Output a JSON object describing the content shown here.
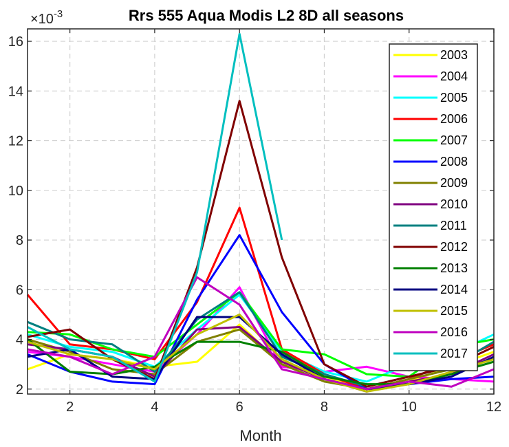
{
  "chart_data": {
    "type": "line",
    "title": "Rrs 555 Aqua Modis L2 8D all seasons",
    "xlabel": "Month",
    "ylabel": "",
    "y_exponent_label": "×10",
    "y_exponent_power": "-3",
    "xlim": [
      1,
      12
    ],
    "ylim": [
      1.8,
      16.5
    ],
    "xticks": [
      2,
      4,
      6,
      8,
      10,
      12
    ],
    "yticks": [
      2,
      4,
      6,
      8,
      10,
      12,
      14,
      16
    ],
    "grid": true,
    "legend_position": "top-right",
    "x": [
      1,
      2,
      3,
      4,
      5,
      6,
      7,
      8,
      9,
      10,
      11,
      12
    ],
    "series": [
      {
        "name": "2003",
        "color": "#ffff00",
        "values": [
          2.8,
          3.4,
          3.2,
          2.9,
          3.1,
          4.6,
          3.0,
          2.5,
          2.0,
          2.3,
          2.9,
          3.5
        ]
      },
      {
        "name": "2004",
        "color": "#ff00ff",
        "values": [
          3.5,
          3.3,
          3.0,
          2.7,
          4.2,
          6.1,
          2.9,
          2.7,
          2.9,
          2.5,
          2.4,
          2.3
        ]
      },
      {
        "name": "2005",
        "color": "#00ffff",
        "values": [
          4.2,
          3.7,
          3.5,
          2.9,
          4.4,
          5.8,
          3.5,
          2.7,
          2.3,
          3.0,
          3.4,
          4.2
        ]
      },
      {
        "name": "2006",
        "color": "#ff0000",
        "values": [
          5.8,
          3.8,
          3.6,
          3.2,
          5.5,
          9.3,
          3.6,
          2.6,
          2.0,
          2.4,
          3.1,
          3.8
        ]
      },
      {
        "name": "2007",
        "color": "#00ff00",
        "values": [
          4.3,
          4.2,
          3.6,
          3.3,
          4.6,
          5.9,
          3.6,
          3.4,
          2.6,
          2.5,
          3.7,
          4.0
        ]
      },
      {
        "name": "2008",
        "color": "#0000ff",
        "values": [
          3.4,
          2.7,
          2.3,
          2.2,
          5.6,
          8.2,
          5.1,
          3.0,
          2.0,
          2.2,
          2.4,
          2.5
        ]
      },
      {
        "name": "2009",
        "color": "#808000",
        "values": [
          4.0,
          3.5,
          2.8,
          2.6,
          3.9,
          4.4,
          3.0,
          2.3,
          2.0,
          2.4,
          2.8,
          3.2
        ]
      },
      {
        "name": "2010",
        "color": "#800080",
        "values": [
          3.8,
          3.6,
          3.3,
          2.5,
          4.4,
          4.5,
          3.1,
          2.4,
          1.9,
          2.3,
          2.6,
          3.4
        ]
      },
      {
        "name": "2011",
        "color": "#008080",
        "values": [
          4.7,
          4.0,
          3.8,
          2.7,
          4.8,
          5.9,
          3.3,
          2.6,
          2.1,
          2.5,
          2.9,
          3.9
        ]
      },
      {
        "name": "2012",
        "color": "#800000",
        "values": [
          4.1,
          4.4,
          3.2,
          2.4,
          6.9,
          13.6,
          7.3,
          3.0,
          2.1,
          2.5,
          2.9,
          3.7
        ]
      },
      {
        "name": "2013",
        "color": "#008000",
        "values": [
          4.0,
          2.7,
          2.6,
          2.9,
          3.9,
          3.9,
          3.5,
          2.5,
          2.2,
          2.2,
          2.6,
          3.1
        ]
      },
      {
        "name": "2014",
        "color": "#000080",
        "values": [
          3.3,
          3.6,
          2.5,
          2.4,
          4.9,
          4.9,
          3.4,
          2.4,
          2.0,
          2.2,
          2.5,
          3.3
        ]
      },
      {
        "name": "2015",
        "color": "#bfbf00",
        "values": [
          3.9,
          3.4,
          3.2,
          2.8,
          4.2,
          5.0,
          3.2,
          2.4,
          1.9,
          2.2,
          2.7,
          3.2
        ]
      },
      {
        "name": "2016",
        "color": "#bf00bf",
        "values": [
          3.6,
          3.3,
          2.6,
          3.3,
          6.5,
          5.4,
          2.8,
          2.4,
          2.0,
          2.3,
          2.1,
          2.8
        ]
      },
      {
        "name": "2017",
        "color": "#00bfbf",
        "values": [
          4.5,
          3.6,
          3.3,
          2.3,
          6.7,
          16.3,
          8.0,
          null,
          null,
          null,
          null,
          null
        ]
      }
    ]
  }
}
